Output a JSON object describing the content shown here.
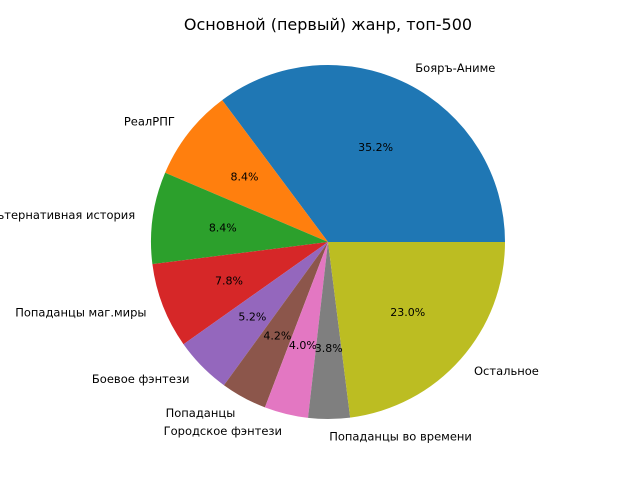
{
  "chart_data": {
    "type": "pie",
    "title": "Основной (первый) жанр, топ-500",
    "slices": [
      {
        "label": "Бояръ-Аниме",
        "value": 35.2,
        "pct_label": "35.2%",
        "color": "#1f77b4"
      },
      {
        "label": "РеалРПГ",
        "value": 8.4,
        "pct_label": "8.4%",
        "color": "#ff7f0e"
      },
      {
        "label": "Альтернативная история",
        "value": 8.4,
        "pct_label": "8.4%",
        "color": "#2ca02c"
      },
      {
        "label": "Попаданцы маг.миры",
        "value": 7.8,
        "pct_label": "7.8%",
        "color": "#d62728"
      },
      {
        "label": "Боевое фэнтези",
        "value": 5.2,
        "pct_label": "5.2%",
        "color": "#9467bd"
      },
      {
        "label": "Попаданцы",
        "value": 4.2,
        "pct_label": "4.2%",
        "color": "#8c564b"
      },
      {
        "label": "Городское фэнтези",
        "value": 4.0,
        "pct_label": "4.0%",
        "color": "#e377c2"
      },
      {
        "label": "Попаданцы во времени",
        "value": 3.8,
        "pct_label": "3.8%",
        "color": "#7f7f7f"
      },
      {
        "label": "Остальное",
        "value": 23.0,
        "pct_label": "23.0%",
        "color": "#bcbd22"
      }
    ],
    "start_angle_deg": 0,
    "direction": "counterclockwise",
    "legend": "none"
  }
}
